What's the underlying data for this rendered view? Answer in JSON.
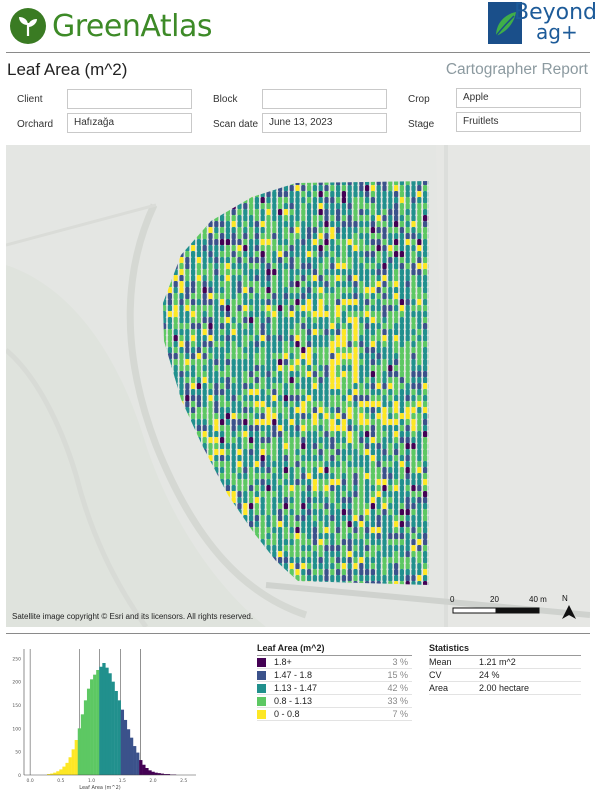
{
  "header": {
    "brand_left": "GreenAtlas",
    "brand_right_line1": "Beyond",
    "brand_right_line2": "ag+"
  },
  "report": {
    "title": "Leaf Area (m^2)",
    "subtitle": "Cartographer Report"
  },
  "fields": {
    "client_label": "Client",
    "client_value": "",
    "block_label": "Block",
    "block_value": "",
    "crop_label": "Crop",
    "crop_value": "Apple",
    "orchard_label": "Orchard",
    "orchard_value": "Hafızağa",
    "scan_date_label": "Scan date",
    "scan_date_value": "June 13, 2023",
    "stage_label": "Stage",
    "stage_value": "Fruitlets"
  },
  "map": {
    "copyright": "Satellite image copyright © Esri and its licensors. All rights reserved.",
    "scale_labels": [
      "0",
      "20",
      "40 m"
    ],
    "north_label": "N"
  },
  "colors": {
    "class_1": "#440154",
    "class_2": "#3b528b",
    "class_3": "#21908d",
    "class_4": "#5dc863",
    "class_5": "#fde725",
    "brand_green": "#3d8a27",
    "brand_blue": "#1d5b99"
  },
  "legend": {
    "title": "Leaf Area (m^2)",
    "items": [
      {
        "label": "1.8+",
        "pct": "3 %",
        "color": "#440154"
      },
      {
        "label": "1.47 - 1.8",
        "pct": "15 %",
        "color": "#3b528b"
      },
      {
        "label": "1.13 - 1.47",
        "pct": "42 %",
        "color": "#21908d"
      },
      {
        "label": "0.8 - 1.13",
        "pct": "33 %",
        "color": "#5dc863"
      },
      {
        "label": "0 - 0.8",
        "pct": "7 %",
        "color": "#fde725"
      }
    ]
  },
  "statistics": {
    "title": "Statistics",
    "rows": [
      {
        "key": "Mean",
        "value": "1.21 m^2"
      },
      {
        "key": "CV",
        "value": "24 %"
      },
      {
        "key": "Area",
        "value": "2.00 hectare"
      }
    ]
  },
  "chart_data": {
    "type": "bar",
    "xlabel": "Leaf Area (m^2)",
    "x_ticks": [
      "0.0",
      "0.5",
      "1.0",
      "1.5",
      "2.0",
      "2.5"
    ],
    "y_ticks": [
      "0",
      "50",
      "100",
      "150",
      "200",
      "250"
    ],
    "xlim": [
      -0.1,
      2.7
    ],
    "ylim": [
      0,
      270
    ],
    "class_breaks": [
      0.0,
      0.8,
      1.13,
      1.47,
      1.8
    ],
    "bins_x": [
      0.3,
      0.35,
      0.4,
      0.45,
      0.5,
      0.55,
      0.6,
      0.65,
      0.7,
      0.75,
      0.8,
      0.85,
      0.9,
      0.95,
      1.0,
      1.05,
      1.1,
      1.15,
      1.2,
      1.25,
      1.3,
      1.35,
      1.4,
      1.45,
      1.5,
      1.55,
      1.6,
      1.65,
      1.7,
      1.75,
      1.8,
      1.85,
      1.9,
      1.95,
      2.0,
      2.05,
      2.1,
      2.15,
      2.2,
      2.25,
      2.3,
      2.35
    ],
    "values": [
      2,
      3,
      5,
      8,
      12,
      18,
      26,
      38,
      55,
      75,
      100,
      130,
      160,
      185,
      205,
      215,
      225,
      232,
      240,
      230,
      218,
      200,
      180,
      160,
      140,
      118,
      98,
      80,
      62,
      48,
      32,
      22,
      15,
      10,
      7,
      5,
      4,
      3,
      2,
      2,
      1,
      1
    ]
  }
}
